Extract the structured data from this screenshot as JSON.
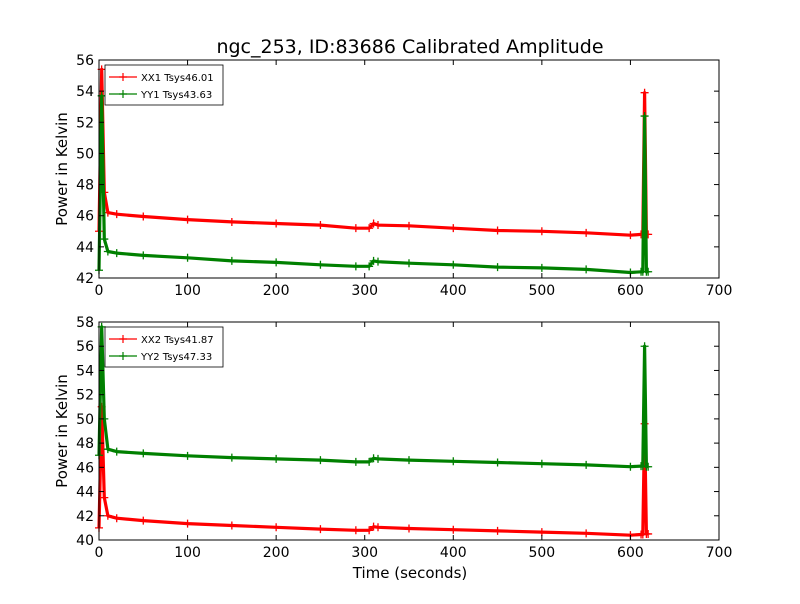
{
  "figure": {
    "title": "ngc_253, ID:83686 Calibrated Amplitude",
    "xlabel": "Time (seconds)"
  },
  "chart_data": [
    {
      "type": "line",
      "title": "ngc_253, ID:83686 Calibrated Amplitude",
      "xlabel": "",
      "ylabel": "Power in Kelvin",
      "xlim": [
        0,
        700
      ],
      "ylim": [
        42,
        56
      ],
      "xticks": [
        0,
        100,
        200,
        300,
        400,
        500,
        600,
        700
      ],
      "yticks": [
        42,
        44,
        46,
        48,
        50,
        52,
        54,
        56
      ],
      "grid": false,
      "legend": "top-left",
      "series": [
        {
          "name": "XX1 Tsys46.01",
          "color": "#ff0000",
          "x": [
            0,
            3,
            6,
            10,
            20,
            50,
            100,
            150,
            200,
            250,
            290,
            305,
            310,
            315,
            350,
            400,
            450,
            500,
            550,
            600,
            612,
            614,
            616,
            618,
            620
          ],
          "y": [
            45.0,
            55.4,
            47.5,
            46.2,
            46.1,
            45.95,
            45.75,
            45.6,
            45.5,
            45.4,
            45.2,
            45.2,
            45.5,
            45.4,
            45.35,
            45.2,
            45.05,
            45.0,
            44.9,
            44.75,
            44.8,
            44.8,
            53.9,
            44.8,
            44.8
          ]
        },
        {
          "name": "YY1 Tsys43.63",
          "color": "#008000",
          "x": [
            0,
            3,
            6,
            10,
            20,
            50,
            100,
            150,
            200,
            250,
            290,
            305,
            310,
            315,
            350,
            400,
            450,
            500,
            550,
            600,
            612,
            614,
            616,
            618,
            620
          ],
          "y": [
            42.5,
            53.7,
            44.5,
            43.7,
            43.6,
            43.45,
            43.3,
            43.1,
            43.0,
            42.85,
            42.75,
            42.75,
            43.1,
            43.05,
            42.95,
            42.85,
            42.7,
            42.65,
            42.55,
            42.35,
            42.4,
            42.4,
            52.4,
            42.4,
            42.4
          ]
        }
      ]
    },
    {
      "type": "line",
      "title": "",
      "xlabel": "Time (seconds)",
      "ylabel": "Power in Kelvin",
      "xlim": [
        0,
        700
      ],
      "ylim": [
        40,
        58
      ],
      "xticks": [
        0,
        100,
        200,
        300,
        400,
        500,
        600,
        700
      ],
      "yticks": [
        40,
        42,
        44,
        46,
        48,
        50,
        52,
        54,
        56,
        58
      ],
      "grid": false,
      "legend": "top-left",
      "series": [
        {
          "name": "XX2 Tsys41.87",
          "color": "#ff0000",
          "x": [
            0,
            3,
            6,
            10,
            20,
            50,
            100,
            150,
            200,
            250,
            290,
            305,
            310,
            315,
            350,
            400,
            450,
            500,
            550,
            600,
            612,
            614,
            616,
            618,
            620
          ],
          "y": [
            41.0,
            51.0,
            43.5,
            42.0,
            41.8,
            41.6,
            41.35,
            41.2,
            41.05,
            40.9,
            40.8,
            40.8,
            41.1,
            41.05,
            40.95,
            40.85,
            40.75,
            40.65,
            40.55,
            40.4,
            40.45,
            40.45,
            49.6,
            40.5,
            40.5
          ]
        },
        {
          "name": "YY2 Tsys47.33",
          "color": "#008000",
          "x": [
            0,
            3,
            6,
            10,
            20,
            50,
            100,
            150,
            200,
            250,
            290,
            305,
            310,
            315,
            350,
            400,
            450,
            500,
            550,
            600,
            612,
            614,
            616,
            618,
            620
          ],
          "y": [
            47.0,
            57.6,
            50.0,
            47.5,
            47.3,
            47.15,
            46.95,
            46.8,
            46.7,
            46.6,
            46.45,
            46.45,
            46.75,
            46.7,
            46.6,
            46.5,
            46.4,
            46.3,
            46.2,
            46.05,
            46.1,
            46.1,
            56.0,
            46.05,
            46.05
          ]
        }
      ]
    }
  ]
}
